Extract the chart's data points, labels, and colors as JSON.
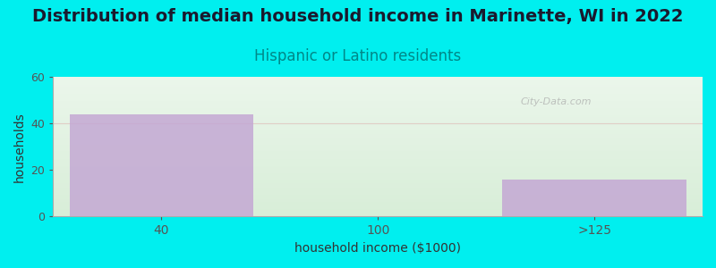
{
  "title": "Distribution of median household income in Marinette, WI in 2022",
  "subtitle": "Hispanic or Latino residents",
  "categories": [
    "40",
    "100",
    ">125"
  ],
  "values": [
    44,
    0,
    16
  ],
  "bar_color": "#C4A8D4",
  "background_color": "#00EFEF",
  "plot_bg_corner_green": "#D8EED8",
  "plot_bg_white": "#FFFFFF",
  "xlabel": "household income ($1000)",
  "ylabel": "households",
  "ylim": [
    0,
    60
  ],
  "yticks": [
    0,
    20,
    40,
    60
  ],
  "title_fontsize": 14,
  "title_color": "#1a1a2e",
  "subtitle_fontsize": 12,
  "subtitle_color": "#008888",
  "watermark": "City-Data.com",
  "grid_color": "#DDAAAA",
  "grid_alpha": 0.5
}
